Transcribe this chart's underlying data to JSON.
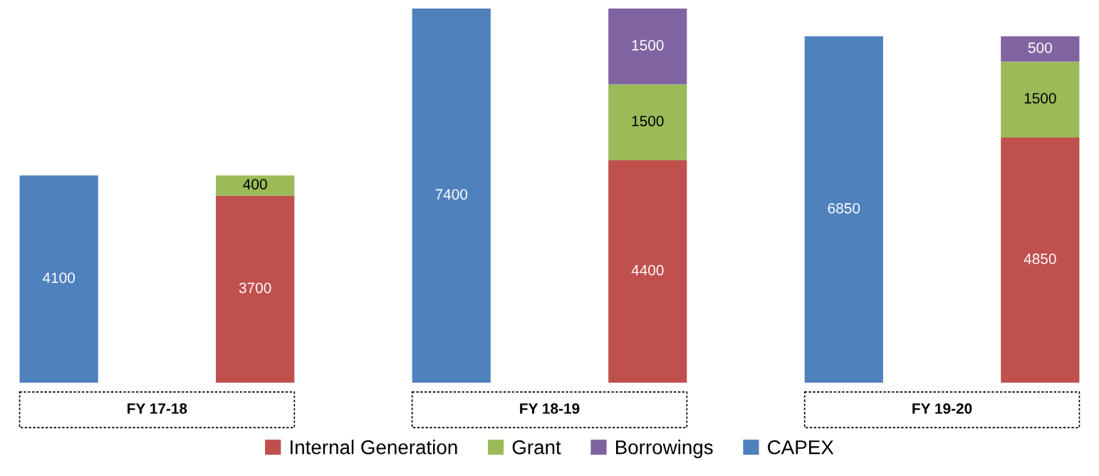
{
  "chart_data": {
    "type": "bar",
    "stacked": true,
    "data_labels": true,
    "legend": "bottom",
    "grid": false,
    "categories": [
      null,
      null,
      null,
      null,
      null,
      null
    ],
    "annotations": [
      "FY 17-18",
      "FY 18-19",
      "FY 19-20"
    ],
    "series": [
      {
        "name": "Internal Generation",
        "color": "#c0504d",
        "values": [
          null,
          3700,
          null,
          4400,
          null,
          4850
        ]
      },
      {
        "name": "Grant",
        "color": "#9bbb59",
        "values": [
          null,
          400,
          null,
          1500,
          null,
          1500
        ]
      },
      {
        "name": "Borrowings",
        "color": "#8064a2",
        "values": [
          null,
          null,
          null,
          1500,
          null,
          500
        ]
      },
      {
        "name": "CAPEX",
        "color": "#4f81bd",
        "values": [
          4100,
          null,
          7400,
          null,
          6850,
          null
        ]
      }
    ]
  }
}
